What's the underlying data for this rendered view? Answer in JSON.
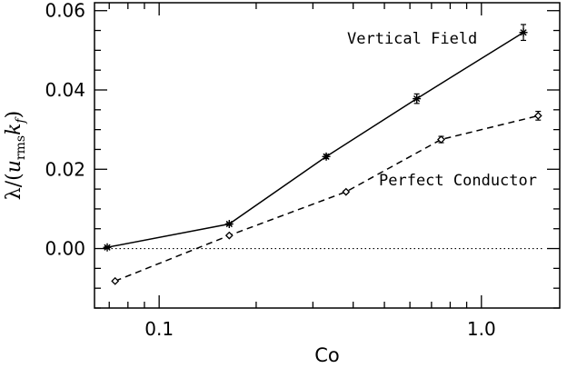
{
  "chart_data": {
    "type": "line",
    "xlabel": "Co",
    "ylabel": "λ/(u_rms k_f)",
    "ylabel_parts": {
      "lambda": "λ",
      "slash": "/(",
      "u": "u",
      "sub_rms": "rms",
      "k": "k",
      "sub_f": "f",
      "close": ")"
    },
    "xscale": "log",
    "xlim": [
      0.063,
      1.75
    ],
    "ylim": [
      -0.015,
      0.062
    ],
    "xticks": [
      0.1,
      1.0
    ],
    "xtick_labels": [
      "0.1",
      "1.0"
    ],
    "yticks": [
      0.0,
      0.02,
      0.04,
      0.06
    ],
    "ytick_labels": [
      "0.00",
      "0.02",
      "0.04",
      "0.06"
    ],
    "reference_line": {
      "y": 0.0,
      "style": "dotted"
    },
    "series": [
      {
        "name": "Vertical Field",
        "line_style": "solid",
        "marker": "asterisk",
        "x": [
          0.069,
          0.165,
          0.33,
          0.63,
          1.35
        ],
        "y": [
          0.0003,
          0.0062,
          0.0232,
          0.0378,
          0.0545
        ],
        "yerr": [
          0.0002,
          0.0003,
          0.0005,
          0.0012,
          0.002
        ]
      },
      {
        "name": "Perfect Conductor",
        "line_style": "dashed",
        "marker": "diamond",
        "x": [
          0.073,
          0.165,
          0.38,
          0.75,
          1.5
        ],
        "y": [
          -0.0082,
          0.0033,
          0.0143,
          0.0275,
          0.0335
        ],
        "yerr": [
          0.0002,
          0.0002,
          0.0003,
          0.0008,
          0.0011
        ]
      }
    ]
  }
}
